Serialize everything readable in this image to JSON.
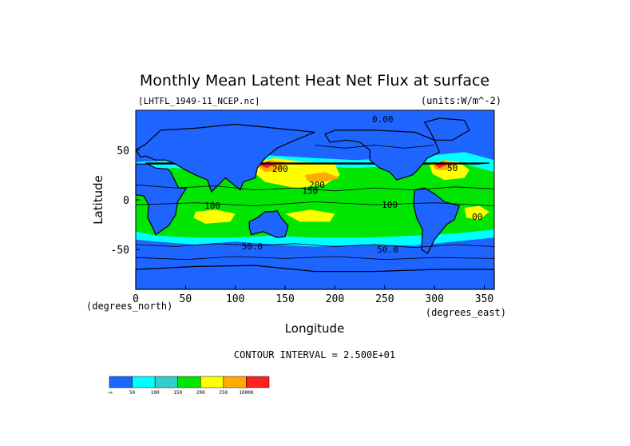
{
  "chart_data": {
    "type": "heatmap",
    "title": "Monthly Mean Latent Heat Net Flux at surface",
    "file_label": "[LHTFL_1949-11_NCEP.nc]",
    "units_label": "(units:W/m^-2)",
    "xlabel": "Longitude",
    "ylabel": "Latitude",
    "x_unit_label": "(degrees_east)",
    "y_unit_label": "(degrees_north)",
    "xlim": [
      0,
      360
    ],
    "ylim": [
      -90,
      90
    ],
    "x_ticks": [
      0,
      50,
      100,
      150,
      200,
      250,
      300,
      350
    ],
    "y_ticks": [
      -50,
      0,
      50
    ],
    "contour_interval_text": "CONTOUR INTERVAL = 2.500E+01",
    "contour_labels": [
      {
        "text": "0.00",
        "lon": 248,
        "lat": 78
      },
      {
        "text": "200",
        "lon": 145,
        "lat": 28
      },
      {
        "text": "150",
        "lon": 175,
        "lat": 6
      },
      {
        "text": "200",
        "lon": 182,
        "lat": 12
      },
      {
        "text": "100",
        "lon": 77,
        "lat": -9
      },
      {
        "text": "100",
        "lon": 255,
        "lat": -8
      },
      {
        "text": "50",
        "lon": 318,
        "lat": 29
      },
      {
        "text": "50.0",
        "lon": 117,
        "lat": -50
      },
      {
        "text": "50.0",
        "lon": 253,
        "lat": -53
      },
      {
        "text": "00",
        "lon": 343,
        "lat": -20
      }
    ],
    "colorbar": {
      "colors": [
        "#1e64ff",
        "#00ffff",
        "#32cdcd",
        "#00e600",
        "#ffff00",
        "#ffaa00",
        "#ff2020"
      ],
      "tick_labels": [
        "-∞",
        "50",
        "100",
        "150",
        "200",
        "250",
        "10000"
      ]
    }
  }
}
